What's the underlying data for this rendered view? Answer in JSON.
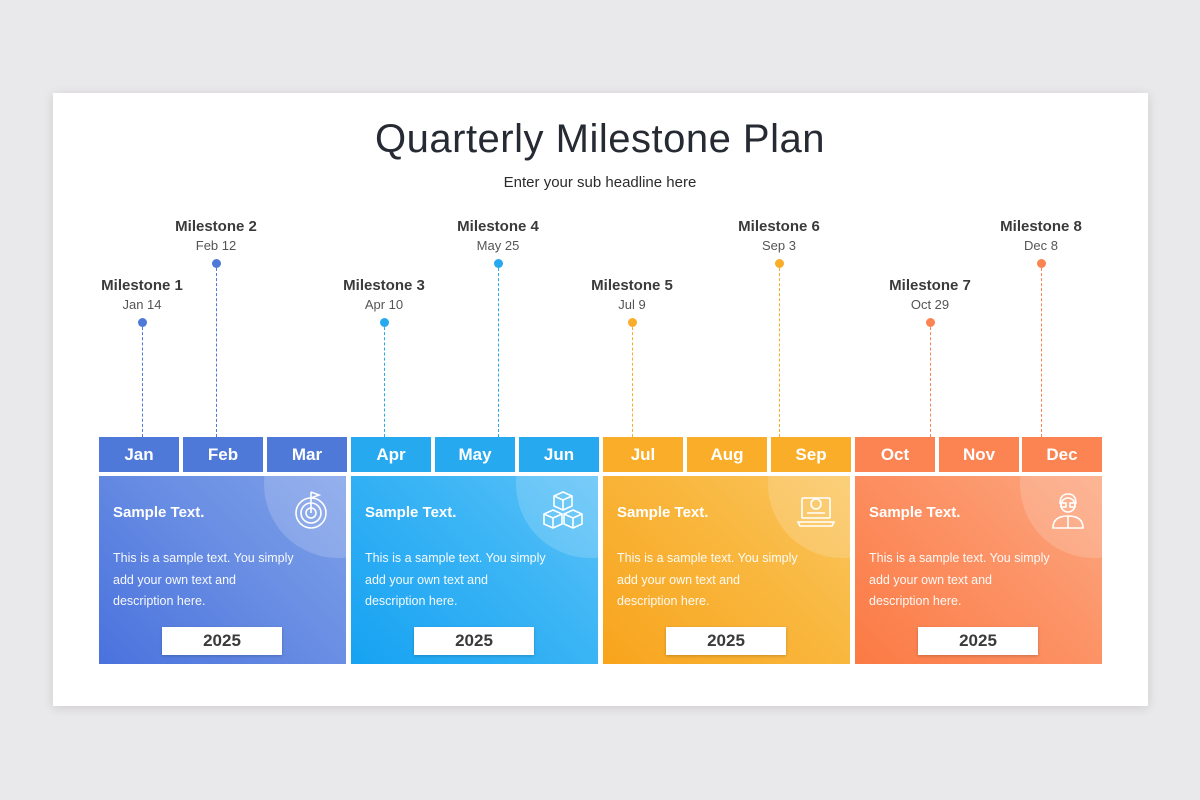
{
  "title": "Quarterly Milestone Plan",
  "subtitle": "Enter your sub headline here",
  "milestones": [
    {
      "name": "Milestone 1",
      "date": "Jan 14"
    },
    {
      "name": "Milestone 2",
      "date": "Feb  12"
    },
    {
      "name": "Milestone 3",
      "date": "Apr 10"
    },
    {
      "name": "Milestone 4",
      "date": "May  25"
    },
    {
      "name": "Milestone 5",
      "date": "Jul  9"
    },
    {
      "name": "Milestone 6",
      "date": "Sep  3"
    },
    {
      "name": "Milestone 7",
      "date": "Oct  29"
    },
    {
      "name": "Milestone 8",
      "date": "Dec 8"
    }
  ],
  "months": [
    "Jan",
    "Feb",
    "Mar",
    "Apr",
    "May",
    "Jun",
    "Jul",
    "Aug",
    "Sep",
    "Oct",
    "Nov",
    "Dec"
  ],
  "quarters": [
    {
      "heading": "Sample Text.",
      "body": "This is a sample text. You simply add your own text and description here.",
      "year": "2025",
      "icon": "target-icon"
    },
    {
      "heading": "Sample Text.",
      "body": "This is a sample text. You simply add your own text and description here.",
      "year": "2025",
      "icon": "cubes-icon"
    },
    {
      "heading": "Sample Text.",
      "body": "This is a sample text. You simply add your own text and description here.",
      "year": "2025",
      "icon": "laptop-ui-icon"
    },
    {
      "heading": "Sample Text.",
      "body": "This is a sample text. You simply add your own text and description here.",
      "year": "2025",
      "icon": "user-headset-icon"
    }
  ],
  "colors": {
    "q1": "#4f79d9",
    "q2": "#27a9f0",
    "q3": "#f9ad28",
    "q4": "#fb8452"
  }
}
